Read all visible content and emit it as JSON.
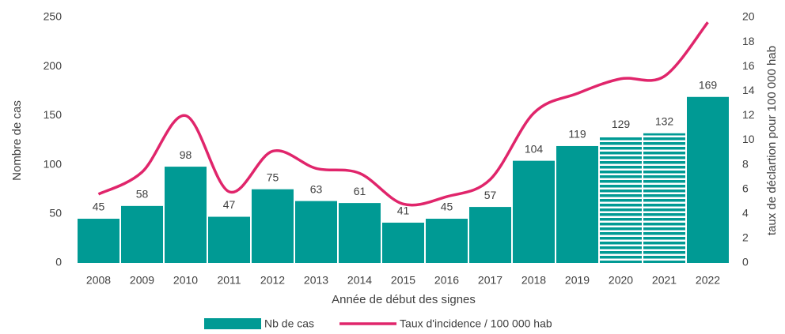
{
  "chart_data": {
    "type": "bar",
    "x_label": "Année de début des signes",
    "y_label": "Nombre de cas",
    "y2_label": "taux de déclartion  pour 100 000 hab",
    "categories": [
      "2008",
      "2009",
      "2010",
      "2011",
      "2012",
      "2013",
      "2014",
      "2015",
      "2016",
      "2017",
      "2018",
      "2019",
      "2020",
      "2021",
      "2022"
    ],
    "series": [
      {
        "name": "Nb de cas",
        "type": "bar",
        "color": "#009a94",
        "values": [
          45,
          58,
          98,
          47,
          75,
          63,
          61,
          41,
          45,
          57,
          104,
          119,
          129,
          132,
          169
        ],
        "hatch": [
          false,
          false,
          false,
          false,
          false,
          false,
          false,
          false,
          false,
          false,
          false,
          false,
          true,
          true,
          false
        ]
      },
      {
        "name": "Taux d'incidence / 100 000 hab",
        "type": "line",
        "axis": "y2",
        "color": "#e0256b",
        "smooth": true,
        "values": [
          5.6,
          7.4,
          12.0,
          5.8,
          9.1,
          7.7,
          7.3,
          4.8,
          5.4,
          6.8,
          12.2,
          13.8,
          15.0,
          15.2,
          19.6
        ]
      }
    ],
    "ylim": [
      0,
      250
    ],
    "yticks": [
      0,
      50,
      100,
      150,
      200,
      250
    ],
    "y2lim": [
      0,
      20
    ],
    "y2ticks": [
      0,
      2,
      4,
      6,
      8,
      10,
      12,
      14,
      16,
      18,
      20
    ],
    "grid": false,
    "legend": "bottom"
  }
}
